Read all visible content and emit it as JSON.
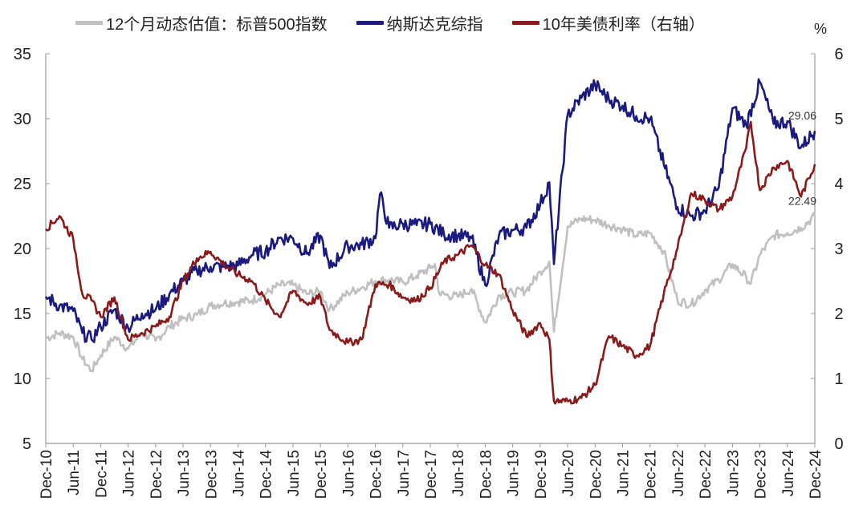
{
  "chart_data": {
    "type": "line",
    "unit_right": "%",
    "x_ticks": [
      "Dec-10",
      "Jun-11",
      "Dec-11",
      "Jun-12",
      "Dec-12",
      "Jun-13",
      "Dec-13",
      "Jun-14",
      "Dec-14",
      "Jun-15",
      "Dec-15",
      "Jun-16",
      "Dec-16",
      "Jun-17",
      "Dec-17",
      "Jun-18",
      "Dec-18",
      "Jun-19",
      "Dec-19",
      "Jun-20",
      "Dec-20",
      "Jun-21",
      "Dec-21",
      "Jun-22",
      "Dec-22",
      "Jun-23",
      "Dec-23",
      "Jun-24",
      "Dec-24"
    ],
    "y_left": {
      "ticks": [
        5,
        10,
        15,
        20,
        25,
        30,
        35
      ],
      "range": [
        5,
        35
      ]
    },
    "y_right": {
      "ticks": [
        0,
        1,
        2,
        3,
        4,
        5,
        6
      ],
      "range": [
        0,
        6
      ]
    },
    "series": [
      {
        "name": "12个月动态估值：标普500指数",
        "axis": "left",
        "color": "#c0c0c0",
        "x": [
          "2010-12",
          "2011-03",
          "2011-06",
          "2011-08",
          "2011-10",
          "2011-12",
          "2012-03",
          "2012-06",
          "2012-09",
          "2012-12",
          "2013-03",
          "2013-06",
          "2013-09",
          "2013-12",
          "2014-03",
          "2014-06",
          "2014-09",
          "2014-12",
          "2015-03",
          "2015-06",
          "2015-09",
          "2015-12",
          "2016-02",
          "2016-06",
          "2016-09",
          "2016-12",
          "2017-03",
          "2017-06",
          "2017-09",
          "2017-12",
          "2018-01",
          "2018-02",
          "2018-06",
          "2018-09",
          "2018-12",
          "2019-03",
          "2019-06",
          "2019-09",
          "2019-12",
          "2020-02",
          "2020-03",
          "2020-06",
          "2020-09",
          "2020-12",
          "2021-03",
          "2021-06",
          "2021-09",
          "2021-12",
          "2022-03",
          "2022-06",
          "2022-09",
          "2022-12",
          "2023-03",
          "2023-06",
          "2023-09",
          "2023-10",
          "2023-12",
          "2024-03",
          "2024-06",
          "2024-09",
          "2024-12"
        ],
        "values": [
          13.1,
          13.5,
          13.2,
          11.5,
          10.6,
          11.8,
          13.2,
          12.3,
          13.5,
          12.9,
          14.0,
          14.6,
          14.9,
          15.6,
          15.8,
          15.9,
          16.0,
          16.5,
          17.2,
          17.2,
          16.5,
          16.7,
          15.3,
          16.6,
          17.0,
          17.5,
          17.6,
          17.4,
          17.9,
          18.5,
          18.8,
          16.5,
          16.3,
          16.9,
          14.3,
          16.4,
          16.6,
          16.8,
          18.2,
          19.0,
          13.6,
          21.7,
          22.3,
          22.2,
          21.8,
          21.5,
          21.0,
          21.2,
          19.8,
          16.0,
          15.7,
          16.8,
          17.6,
          18.8,
          17.8,
          17.3,
          19.5,
          21.0,
          21.2,
          21.6,
          22.49
        ]
      },
      {
        "name": "纳斯达克综指",
        "axis": "left",
        "color": "#1a1a80",
        "x": [
          "2010-12",
          "2011-03",
          "2011-06",
          "2011-08",
          "2011-10",
          "2011-12",
          "2012-03",
          "2012-06",
          "2012-09",
          "2012-12",
          "2013-03",
          "2013-06",
          "2013-09",
          "2013-12",
          "2014-03",
          "2014-06",
          "2014-09",
          "2014-12",
          "2015-03",
          "2015-06",
          "2015-09",
          "2015-12",
          "2016-02",
          "2016-06",
          "2016-09",
          "2016-12",
          "2017-01",
          "2017-03",
          "2017-06",
          "2017-09",
          "2017-12",
          "2018-03",
          "2018-06",
          "2018-09",
          "2018-12",
          "2019-03",
          "2019-06",
          "2019-09",
          "2019-12",
          "2020-02",
          "2020-03",
          "2020-06",
          "2020-09",
          "2020-12",
          "2021-03",
          "2021-06",
          "2021-09",
          "2021-12",
          "2022-03",
          "2022-06",
          "2022-09",
          "2022-12",
          "2023-03",
          "2023-06",
          "2023-09",
          "2023-12",
          "2024-03",
          "2024-06",
          "2024-09",
          "2024-12"
        ],
        "values": [
          16.3,
          15.6,
          15.2,
          13.5,
          13.0,
          14.0,
          15.3,
          13.9,
          15.0,
          15.3,
          16.5,
          17.5,
          18.3,
          18.6,
          18.6,
          18.7,
          19.5,
          19.8,
          20.8,
          20.8,
          19.6,
          21.0,
          18.5,
          20.2,
          20.3,
          20.8,
          24.2,
          21.6,
          21.9,
          21.8,
          21.9,
          21.1,
          21.0,
          20.8,
          17.2,
          21.0,
          21.4,
          21.6,
          23.4,
          25.1,
          18.8,
          30.3,
          31.6,
          32.6,
          31.5,
          31.0,
          30.2,
          30.0,
          26.5,
          23.2,
          22.5,
          22.9,
          24.7,
          30.8,
          29.5,
          32.8,
          29.6,
          29.8,
          27.8,
          29.06
        ]
      },
      {
        "name": "10年美债利率（右轴）",
        "axis": "right",
        "color": "#8b1a1a",
        "x": [
          "2010-12",
          "2011-03",
          "2011-06",
          "2011-08",
          "2011-10",
          "2011-12",
          "2012-03",
          "2012-06",
          "2012-09",
          "2012-12",
          "2013-03",
          "2013-06",
          "2013-09",
          "2013-12",
          "2014-03",
          "2014-06",
          "2014-09",
          "2014-12",
          "2015-03",
          "2015-06",
          "2015-09",
          "2015-12",
          "2016-02",
          "2016-06",
          "2016-09",
          "2016-12",
          "2017-03",
          "2017-06",
          "2017-09",
          "2017-12",
          "2018-03",
          "2018-06",
          "2018-09",
          "2018-12",
          "2019-03",
          "2019-06",
          "2019-09",
          "2019-12",
          "2020-02",
          "2020-03",
          "2020-06",
          "2020-09",
          "2020-12",
          "2021-03",
          "2021-06",
          "2021-09",
          "2021-12",
          "2022-03",
          "2022-06",
          "2022-09",
          "2022-12",
          "2023-03",
          "2023-06",
          "2023-09",
          "2023-10",
          "2023-12",
          "2024-03",
          "2024-06",
          "2024-09",
          "2024-12"
        ],
        "values": [
          3.3,
          3.5,
          3.15,
          2.3,
          2.2,
          1.95,
          2.25,
          1.6,
          1.7,
          1.8,
          1.95,
          2.5,
          2.85,
          2.95,
          2.75,
          2.6,
          2.5,
          2.2,
          1.95,
          2.35,
          2.15,
          2.25,
          1.75,
          1.55,
          1.6,
          2.45,
          2.45,
          2.25,
          2.2,
          2.4,
          2.8,
          2.9,
          3.05,
          2.75,
          2.6,
          2.05,
          1.65,
          1.85,
          1.6,
          0.65,
          0.65,
          0.7,
          0.9,
          1.65,
          1.5,
          1.35,
          1.5,
          2.3,
          3.0,
          3.85,
          3.75,
          3.6,
          3.8,
          4.55,
          4.95,
          3.9,
          4.25,
          4.35,
          3.8,
          4.3
        ]
      }
    ],
    "annotations": [
      {
        "text": "29.06",
        "series": "纳斯达克综指"
      },
      {
        "text": "22.49",
        "series": "12个月动态估值：标普500指数"
      }
    ]
  }
}
